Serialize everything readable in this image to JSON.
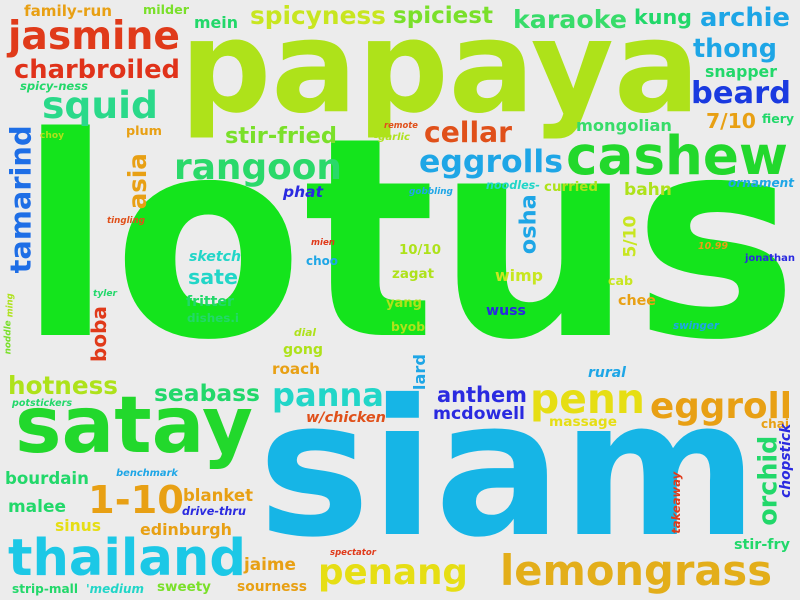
{
  "background": "#ececec",
  "words": [
    {
      "text": "lotus",
      "color": "#14e41c"
    },
    {
      "text": "siam",
      "color": "#16b5e6"
    },
    {
      "text": "papaya",
      "color": "#aee21a"
    },
    {
      "text": "satay",
      "color": "#22d82c"
    },
    {
      "text": "cashew",
      "color": "#22d82c"
    },
    {
      "text": "jasmine",
      "color": "#e03a1a"
    },
    {
      "text": "thailand",
      "color": "#1cc8e6"
    },
    {
      "text": "lemongrass",
      "color": "#e3ae1a"
    },
    {
      "text": "eggroll",
      "color": "#e8a014"
    },
    {
      "text": "penang",
      "color": "#e6de14"
    },
    {
      "text": "penn",
      "color": "#e6de14"
    },
    {
      "text": "rangoon",
      "color": "#2ad96a"
    },
    {
      "text": "squid",
      "color": "#2ad98a"
    },
    {
      "text": "charbroiled",
      "color": "#e0321a"
    },
    {
      "text": "spicyness",
      "color": "#c8e620"
    },
    {
      "text": "spiciest",
      "color": "#7ae02a"
    },
    {
      "text": "karaoke",
      "color": "#38dc6a"
    },
    {
      "text": "archie",
      "color": "#1ea6e6"
    },
    {
      "text": "thong",
      "color": "#1ea6e6"
    },
    {
      "text": "beard",
      "color": "#1a3ae0"
    },
    {
      "text": "eggrolls",
      "color": "#1ea6e6"
    },
    {
      "text": "cellar",
      "color": "#e0501a"
    },
    {
      "text": "panna",
      "color": "#22d6c8"
    },
    {
      "text": "1-10",
      "color": "#e8a014"
    },
    {
      "text": "stir-fried",
      "color": "#7ae02a"
    },
    {
      "text": "seabass",
      "color": "#22d86a"
    },
    {
      "text": "hotness",
      "color": "#aee21a"
    },
    {
      "text": "tamarind",
      "color": "#1e6ee6"
    },
    {
      "text": "asia",
      "color": "#e8a014"
    },
    {
      "text": "boba",
      "color": "#e03a1a"
    },
    {
      "text": "osha",
      "color": "#1ea6e6"
    },
    {
      "text": "orchid",
      "color": "#22d86a"
    },
    {
      "text": "anthem",
      "color": "#2a2ae0"
    },
    {
      "text": "mcdowell",
      "color": "#2a2ae0"
    },
    {
      "text": "malee",
      "color": "#22d86a"
    },
    {
      "text": "7/10",
      "color": "#e8a014"
    },
    {
      "text": "mongolian",
      "color": "#38dc6a"
    },
    {
      "text": "family-run",
      "color": "#e8a014"
    },
    {
      "text": "milder",
      "color": "#7ae02a"
    },
    {
      "text": "mein",
      "color": "#22d86a"
    },
    {
      "text": "kung",
      "color": "#22d86a"
    },
    {
      "text": "snapper",
      "color": "#22d86a"
    },
    {
      "text": "fiery",
      "color": "#22d86a"
    },
    {
      "text": "plum",
      "color": "#e8a014"
    },
    {
      "text": "phat",
      "color": "#2a2ae0"
    },
    {
      "text": "curried",
      "color": "#aee21a"
    },
    {
      "text": "bahn",
      "color": "#aee21a"
    },
    {
      "text": "ornament",
      "color": "#1ea6e6"
    },
    {
      "text": "sketch",
      "color": "#22d6c8"
    },
    {
      "text": "sate",
      "color": "#22d6c8"
    },
    {
      "text": "fritter",
      "color": "#22d86a"
    },
    {
      "text": "dishes.i",
      "color": "#22d86a"
    },
    {
      "text": "10/10",
      "color": "#aee21a"
    },
    {
      "text": "zagat",
      "color": "#aee21a"
    },
    {
      "text": "yang",
      "color": "#aee21a"
    },
    {
      "text": "byob",
      "color": "#aee21a"
    },
    {
      "text": "wimp",
      "color": "#c8e620"
    },
    {
      "text": "wuss",
      "color": "#2a2ae0"
    },
    {
      "text": "cab",
      "color": "#c8e620"
    },
    {
      "text": "chee",
      "color": "#e8a014"
    },
    {
      "text": "5/10",
      "color": "#c8e620"
    },
    {
      "text": "10.99",
      "color": "#e8a014"
    },
    {
      "text": "jonathan",
      "color": "#2a2ae0"
    },
    {
      "text": "swinger",
      "color": "#1ea6e6"
    },
    {
      "text": "mien",
      "color": "#e03a1a"
    },
    {
      "text": "choo",
      "color": "#1ea6e6"
    },
    {
      "text": "gong",
      "color": "#aee21a"
    },
    {
      "text": "roach",
      "color": "#e8a014"
    },
    {
      "text": "lard",
      "color": "#1ea6e6"
    },
    {
      "text": "rural",
      "color": "#1ea6e6"
    },
    {
      "text": "massage",
      "color": "#e6de14"
    },
    {
      "text": "chai",
      "color": "#e8a014"
    },
    {
      "text": "chopstick",
      "color": "#2a2ae0"
    },
    {
      "text": "w/chicken",
      "color": "#e0501a"
    },
    {
      "text": "bourdain",
      "color": "#22d86a"
    },
    {
      "text": "benchmark",
      "color": "#1ea6e6"
    },
    {
      "text": "blanket",
      "color": "#e8a014"
    },
    {
      "text": "drive-thru",
      "color": "#2a2ae0"
    },
    {
      "text": "edinburgh",
      "color": "#e8a014"
    },
    {
      "text": "sinus",
      "color": "#e6de14"
    },
    {
      "text": "takeaway",
      "color": "#e03a1a"
    },
    {
      "text": "stir-fry",
      "color": "#22d86a"
    },
    {
      "text": "jaime",
      "color": "#e8a014"
    },
    {
      "text": "sourness",
      "color": "#e8a014"
    },
    {
      "text": "spectator",
      "color": "#e03a1a"
    },
    {
      "text": "strip-mall",
      "color": "#22d86a"
    },
    {
      "text": "'medium",
      "color": "#22d6c8"
    },
    {
      "text": "sweety",
      "color": "#7ae02a"
    },
    {
      "text": "spicy-ness",
      "color": "#22d86a"
    },
    {
      "text": "remote",
      "color": "#e0501a"
    },
    {
      "text": "-garlic",
      "color": "#aee21a"
    },
    {
      "text": "choy",
      "color": "#aee21a"
    },
    {
      "text": "tingling",
      "color": "#e0501a"
    },
    {
      "text": "gobbling",
      "color": "#1ea6e6"
    },
    {
      "text": "noodles-",
      "color": "#22d6c8"
    },
    {
      "text": "tyler",
      "color": "#22d86a"
    },
    {
      "text": "ming",
      "color": "#aee21a"
    },
    {
      "text": "noddle",
      "color": "#7ae02a"
    },
    {
      "text": "dial",
      "color": "#aee21a"
    },
    {
      "text": "potstickers",
      "color": "#22d86a"
    }
  ]
}
